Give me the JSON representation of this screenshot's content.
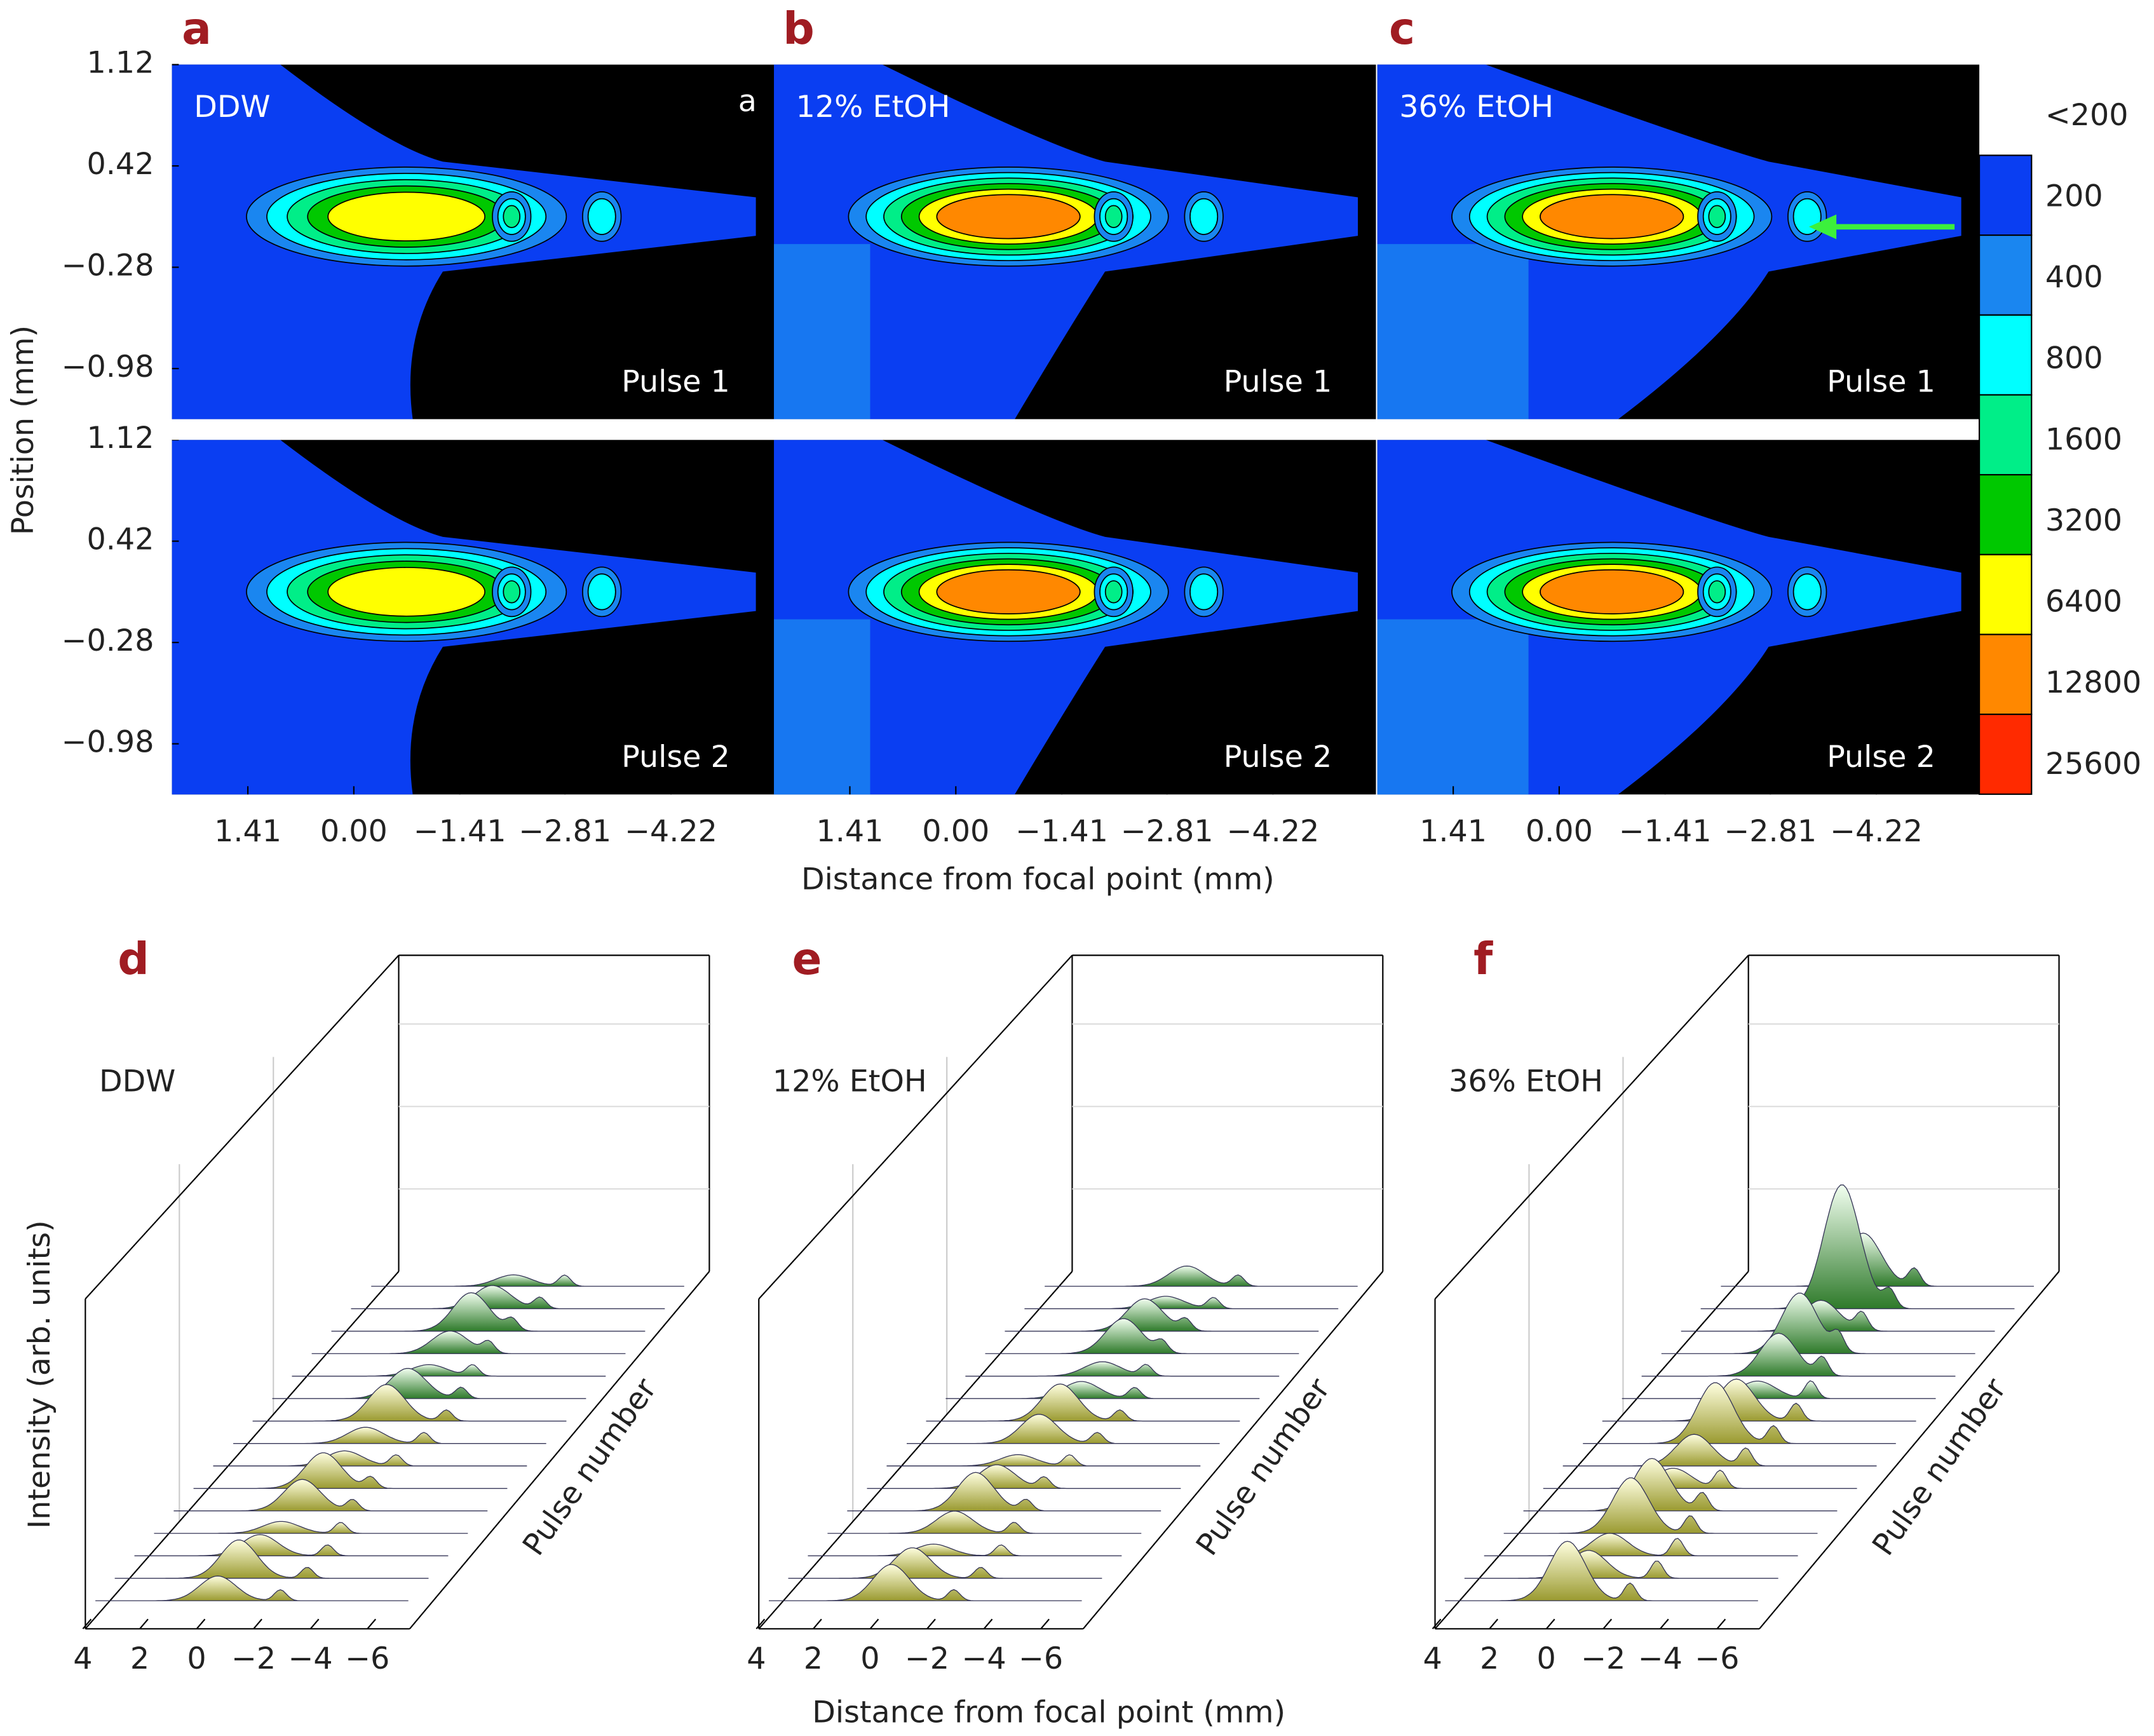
{
  "chart_data": [
    {
      "type": "contour",
      "xlabel": "Distance from focal point (mm)",
      "ylabel": "Position (mm)",
      "xlim": [
        2.42,
        -5.59
      ],
      "ylim": [
        -1.33,
        1.12
      ],
      "xticks": [
        1.41,
        {
          "value": 0,
          "label": "0.00"
        },
        {
          "value": -1.41,
          "label": "−1.41"
        },
        {
          "value": -2.81,
          "label": "−2.81"
        },
        {
          "value": -4.22,
          "label": "−4.22"
        }
      ],
      "yticks": [
        1.12,
        0.42,
        {
          "value": -0.28,
          "label": "−0.28"
        },
        {
          "value": -0.98,
          "label": "−0.98"
        }
      ],
      "colorbar": {
        "levels": [
          {
            "value": 200,
            "label": "<200"
          },
          200,
          400,
          800,
          1600,
          3200,
          6400,
          12800,
          25600
        ],
        "colors": [
          "#000000",
          "#0a3ef2",
          "#1a86f0",
          "#00ffff",
          "#00ee88",
          "#00c800",
          "#ffff00",
          "#ff8800",
          "#ff2a00"
        ]
      },
      "panels": [
        {
          "panel_label": "a",
          "label": "DDW",
          "note": "a",
          "pulses": [
            "Pulse 1",
            "Pulse 2"
          ]
        },
        {
          "panel_label": "b",
          "label": "12% EtOH",
          "pulses": [
            "Pulse 1",
            "Pulse 2"
          ]
        },
        {
          "panel_label": "c",
          "label": "36% EtOH",
          "pulses": [
            "Pulse 1",
            "Pulse 2"
          ]
        }
      ]
    },
    {
      "type": "waterfall",
      "xlabel": "Distance from focal point (mm)",
      "ylabel": "Intensity (arb. units)",
      "zlabel": "Pulse number",
      "xticks": [
        4,
        2,
        0,
        {
          "value": -2,
          "label": "−2"
        },
        {
          "value": -4,
          "label": "−4"
        },
        {
          "value": -6,
          "label": "−6"
        }
      ],
      "panels": [
        {
          "panel_label": "d",
          "label": "DDW"
        },
        {
          "panel_label": "e",
          "label": "12% EtOH"
        },
        {
          "panel_label": "f",
          "label": "36% EtOH"
        }
      ]
    }
  ]
}
